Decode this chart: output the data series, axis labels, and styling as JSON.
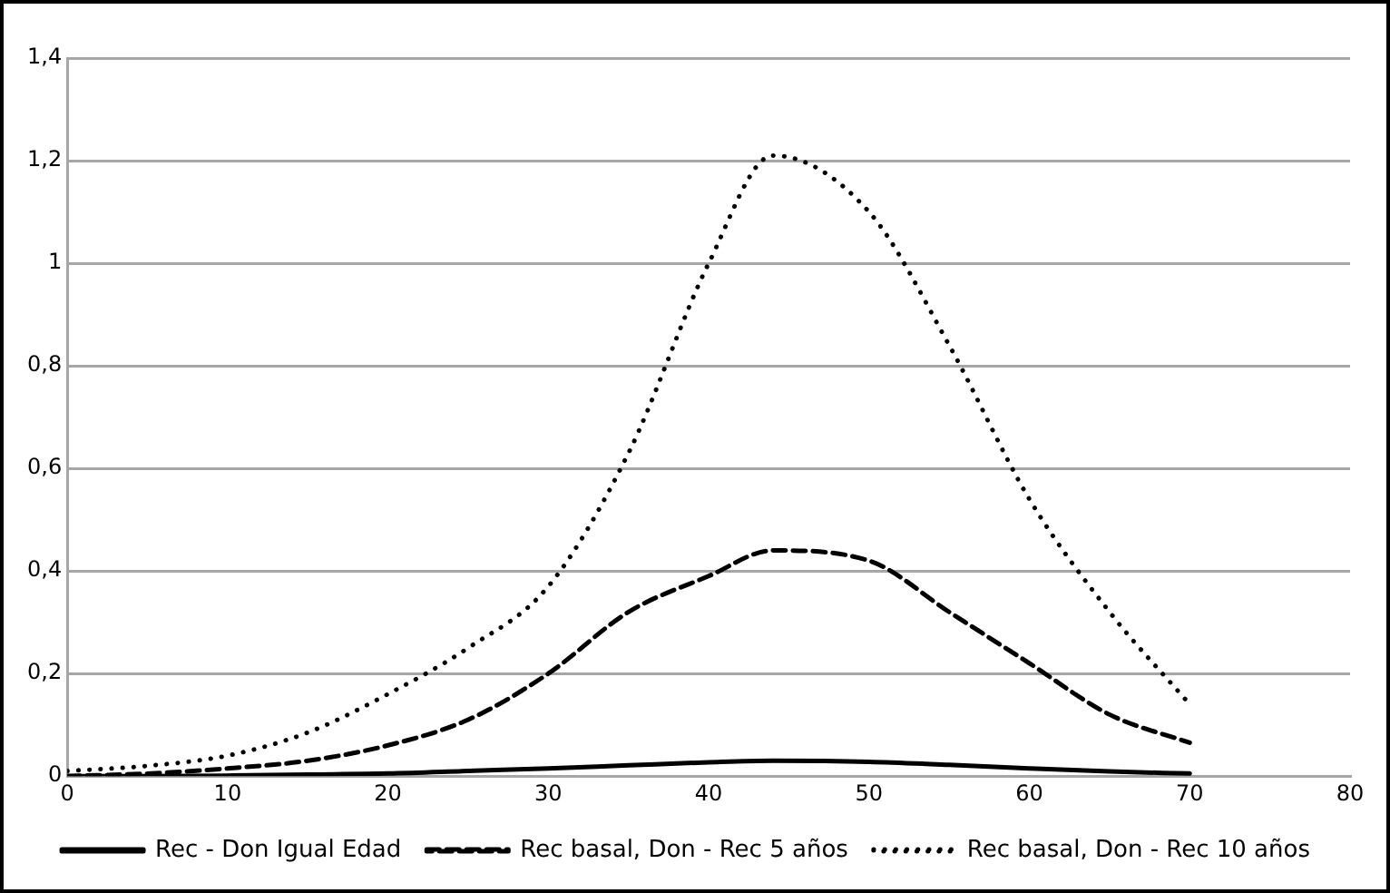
{
  "chart_data": {
    "type": "line",
    "x": [
      0,
      5,
      10,
      15,
      20,
      25,
      30,
      35,
      40,
      44,
      50,
      55,
      60,
      65,
      70
    ],
    "series": [
      {
        "name": "Rec - Don Igual Edad",
        "color": "#000000",
        "line_style": "solid",
        "values": [
          0,
          0,
          0.001,
          0.003,
          0.005,
          0.01,
          0.015,
          0.021,
          0.027,
          0.03,
          0.028,
          0.022,
          0.015,
          0.009,
          0.005
        ]
      },
      {
        "name": "Rec basal, Don - Rec 5 años",
        "color": "#000000",
        "line_style": "dashed",
        "values": [
          0,
          0.005,
          0.015,
          0.03,
          0.06,
          0.11,
          0.2,
          0.32,
          0.39,
          0.44,
          0.42,
          0.32,
          0.22,
          0.12,
          0.065
        ]
      },
      {
        "name": "Rec basal, Don - Rec 10 años",
        "color": "#000000",
        "line_style": "dotted",
        "values": [
          0.01,
          0.02,
          0.04,
          0.085,
          0.16,
          0.25,
          0.37,
          0.63,
          1.0,
          1.21,
          1.1,
          0.84,
          0.54,
          0.32,
          0.14
        ]
      }
    ],
    "xlim": [
      0,
      80
    ],
    "xticks": [
      0,
      10,
      20,
      30,
      40,
      50,
      60,
      70,
      80
    ],
    "ylim": [
      0,
      1.4
    ],
    "yticks": [
      0,
      {
        "value": 0.2,
        "label": "0,2"
      },
      {
        "value": 0.4,
        "label": "0,4"
      },
      {
        "value": 0.6,
        "label": "0,6"
      },
      {
        "value": 0.8,
        "label": "0,8"
      },
      1,
      {
        "value": 1.2,
        "label": "1,2"
      },
      {
        "value": 1.4,
        "label": "1,4"
      }
    ],
    "grid": "y",
    "legend": "bottom",
    "marker": "none"
  }
}
